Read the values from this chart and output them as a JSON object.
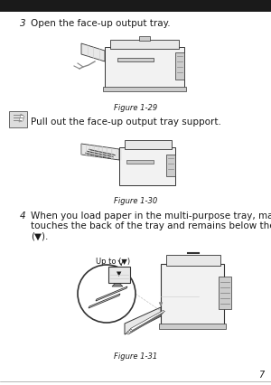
{
  "bg_color": "#ffffff",
  "header_color": "#1a1a1a",
  "step3_number": "3",
  "step3_text": "Open the face-up output tray.",
  "fig29_label": "Figure 1-29",
  "note_text": "Pull out the face-up output tray support.",
  "fig30_label": "Figure 1-30",
  "step4_number": "4",
  "step4_text_line1": "When you load paper in the multi-purpose tray, make sure it",
  "step4_text_line2": "touches the back of the tray and remains below the paper guide",
  "step4_text_line3": "(▼).",
  "upto_label": "Up to (▼)",
  "fig31_label": "Figure 1-31",
  "page_number": "7",
  "text_color": "#1a1a1a",
  "fig_edge": "#333333",
  "fig_face": "#f2f2f2",
  "fig_dark": "#888888",
  "fig_mid": "#cccccc",
  "fig_light": "#e8e8e8",
  "note_icon_edge": "#666666",
  "note_icon_face": "#dddddd"
}
